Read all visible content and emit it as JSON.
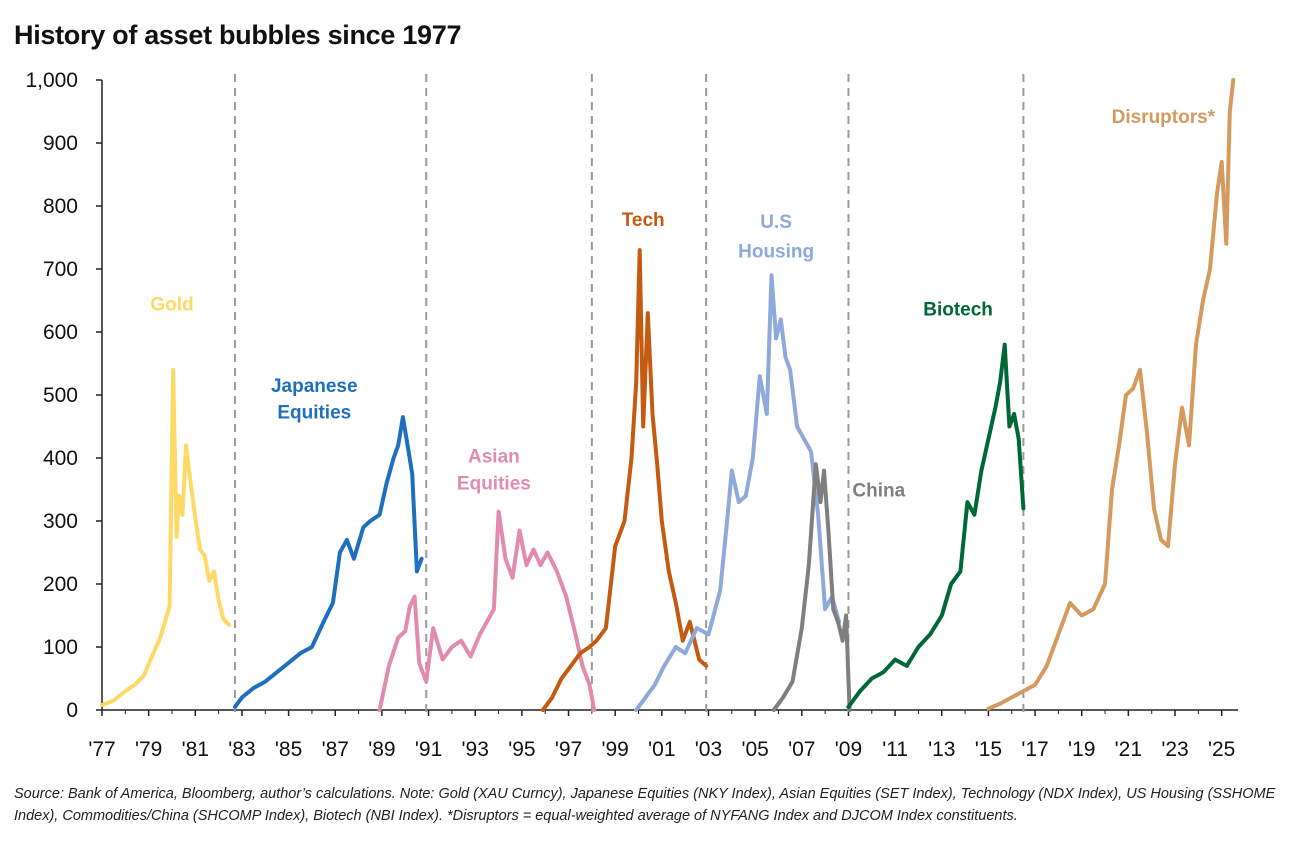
{
  "title": "History of asset bubbles since 1977",
  "source": "Source: Bank of America, Bloomberg, author’s calculations. Note: Gold (XAU Curncy), Japanese Equities (NKY Index), Asian Equities (SET Index), Technology (NDX Index), US Housing (SSHOME Index), Commodities/China (SHCOMP Index), Biotech (NBI Index). *Disruptors = equal-weighted average of NYFANG Index and DJCOM Index constituents.",
  "chart_data": {
    "type": "line",
    "title": "History of asset bubbles since 1977",
    "xlabel": "",
    "ylabel": "",
    "xlim": [
      1977,
      2025.7
    ],
    "ylim": [
      0,
      1000
    ],
    "grid": false,
    "x_tick_labels": [
      "'77",
      "'79",
      "'81",
      "'83",
      "'85",
      "'87",
      "'89",
      "'91",
      "'93",
      "'95",
      "'97",
      "'99",
      "'01",
      "'03",
      "'05",
      "'07",
      "'09",
      "'11",
      "'13",
      "'15",
      "'17",
      "'19",
      "'21",
      "'23",
      "'25"
    ],
    "y_tick_labels": [
      "0",
      "100",
      "200",
      "300",
      "400",
      "500",
      "600",
      "700",
      "800",
      "900",
      "1,000"
    ],
    "y_ticks": [
      0,
      100,
      200,
      300,
      400,
      500,
      600,
      700,
      800,
      900,
      1000
    ],
    "dividers": [
      1982.7,
      1990.9,
      1998.0,
      2002.9,
      2009.0,
      2016.5
    ],
    "series": [
      {
        "name": "Gold",
        "label": "Gold",
        "color": "#FFD966",
        "x": [
          1977.0,
          1977.5,
          1978.0,
          1978.4,
          1978.8,
          1979.2,
          1979.5,
          1979.9,
          1980.05,
          1980.2,
          1980.3,
          1980.45,
          1980.6,
          1980.8,
          1981.0,
          1981.2,
          1981.4,
          1981.6,
          1981.8,
          1982.0,
          1982.2,
          1982.45
        ],
        "values": [
          8,
          15,
          30,
          40,
          55,
          90,
          115,
          165,
          540,
          275,
          340,
          310,
          420,
          360,
          305,
          255,
          245,
          205,
          220,
          175,
          145,
          135
        ]
      },
      {
        "name": "Japanese Equities",
        "label": "Japanese Equities",
        "color": "#1F6FBF",
        "x": [
          1982.7,
          1983.0,
          1983.5,
          1984.0,
          1984.5,
          1985.0,
          1985.5,
          1986.0,
          1986.5,
          1986.9,
          1987.2,
          1987.5,
          1987.8,
          1988.2,
          1988.5,
          1988.9,
          1989.2,
          1989.5,
          1989.7,
          1989.9,
          1990.1,
          1990.3,
          1990.5,
          1990.7
        ],
        "values": [
          5,
          20,
          35,
          45,
          60,
          75,
          90,
          100,
          140,
          170,
          250,
          270,
          240,
          290,
          300,
          310,
          360,
          400,
          420,
          465,
          420,
          375,
          220,
          240
        ]
      },
      {
        "name": "Asian Equities",
        "label": "Asian Equities",
        "color": "#E28BAE",
        "x": [
          1988.9,
          1989.3,
          1989.7,
          1990.0,
          1990.2,
          1990.4,
          1990.6,
          1990.9,
          1991.2,
          1991.6,
          1992.0,
          1992.4,
          1992.8,
          1993.2,
          1993.5,
          1993.8,
          1994.0,
          1994.3,
          1994.6,
          1994.9,
          1995.2,
          1995.5,
          1995.8,
          1996.1,
          1996.5,
          1996.9,
          1997.3,
          1997.6,
          1997.9,
          1998.1
        ],
        "values": [
          0,
          70,
          115,
          125,
          165,
          180,
          75,
          45,
          130,
          80,
          100,
          110,
          85,
          120,
          140,
          160,
          315,
          240,
          210,
          285,
          230,
          255,
          230,
          250,
          220,
          180,
          120,
          70,
          40,
          0
        ]
      },
      {
        "name": "Tech",
        "label": "Tech",
        "color": "#C55A11",
        "x": [
          1995.9,
          1996.3,
          1996.7,
          1997.1,
          1997.5,
          1997.9,
          1998.2,
          1998.6,
          1999.0,
          1999.4,
          1999.7,
          1999.9,
          2000.05,
          2000.2,
          2000.4,
          2000.6,
          2000.8,
          2001.0,
          2001.3,
          2001.6,
          2001.9,
          2002.2,
          2002.6,
          2002.9
        ],
        "values": [
          0,
          20,
          50,
          70,
          90,
          100,
          110,
          130,
          260,
          300,
          400,
          520,
          730,
          450,
          630,
          470,
          390,
          300,
          220,
          170,
          110,
          140,
          80,
          70
        ]
      },
      {
        "name": "U.S Housing",
        "label": "U.S Housing",
        "color": "#8EA9DB",
        "x": [
          1999.9,
          2000.3,
          2000.7,
          2001.1,
          2001.6,
          2002.0,
          2002.5,
          2003.0,
          2003.5,
          2003.8,
          2004.0,
          2004.3,
          2004.6,
          2004.9,
          2005.2,
          2005.5,
          2005.7,
          2005.9,
          2006.1,
          2006.3,
          2006.5,
          2006.8,
          2007.1,
          2007.4,
          2007.7,
          2008.0,
          2008.3,
          2008.6
        ],
        "values": [
          0,
          20,
          40,
          70,
          100,
          90,
          130,
          120,
          190,
          300,
          380,
          330,
          340,
          400,
          530,
          470,
          690,
          590,
          620,
          560,
          540,
          450,
          430,
          410,
          310,
          160,
          180,
          140
        ]
      },
      {
        "name": "China",
        "label": "China",
        "color": "#7F7F7F",
        "x": [
          2005.8,
          2006.2,
          2006.6,
          2007.0,
          2007.3,
          2007.6,
          2007.8,
          2007.95,
          2008.15,
          2008.35,
          2008.55,
          2008.75,
          2008.9,
          2009.05
        ],
        "values": [
          0,
          20,
          45,
          130,
          230,
          390,
          330,
          380,
          280,
          160,
          140,
          110,
          150,
          0
        ]
      },
      {
        "name": "Biotech",
        "label": "Biotech",
        "color": "#006837",
        "x": [
          2009.0,
          2009.5,
          2010.0,
          2010.5,
          2011.0,
          2011.5,
          2012.0,
          2012.5,
          2013.0,
          2013.4,
          2013.8,
          2014.1,
          2014.4,
          2014.7,
          2015.0,
          2015.3,
          2015.5,
          2015.7,
          2015.9,
          2016.1,
          2016.3,
          2016.5
        ],
        "values": [
          5,
          30,
          50,
          60,
          80,
          70,
          100,
          120,
          150,
          200,
          220,
          330,
          310,
          380,
          430,
          480,
          520,
          580,
          450,
          470,
          430,
          320
        ]
      },
      {
        "name": "Disruptors*",
        "label": "Disruptors*",
        "color": "#D49A5E",
        "x": [
          2015.0,
          2015.5,
          2016.0,
          2016.5,
          2017.0,
          2017.5,
          2018.0,
          2018.5,
          2019.0,
          2019.5,
          2020.0,
          2020.3,
          2020.6,
          2020.9,
          2021.2,
          2021.5,
          2021.8,
          2022.1,
          2022.4,
          2022.7,
          2023.0,
          2023.3,
          2023.6,
          2023.9,
          2024.2,
          2024.5,
          2024.8,
          2025.0,
          2025.2,
          2025.35,
          2025.5
        ],
        "values": [
          2,
          10,
          20,
          30,
          40,
          70,
          120,
          170,
          150,
          160,
          200,
          350,
          420,
          500,
          510,
          540,
          440,
          320,
          270,
          260,
          390,
          480,
          420,
          580,
          650,
          700,
          820,
          870,
          740,
          950,
          1000
        ]
      }
    ]
  }
}
